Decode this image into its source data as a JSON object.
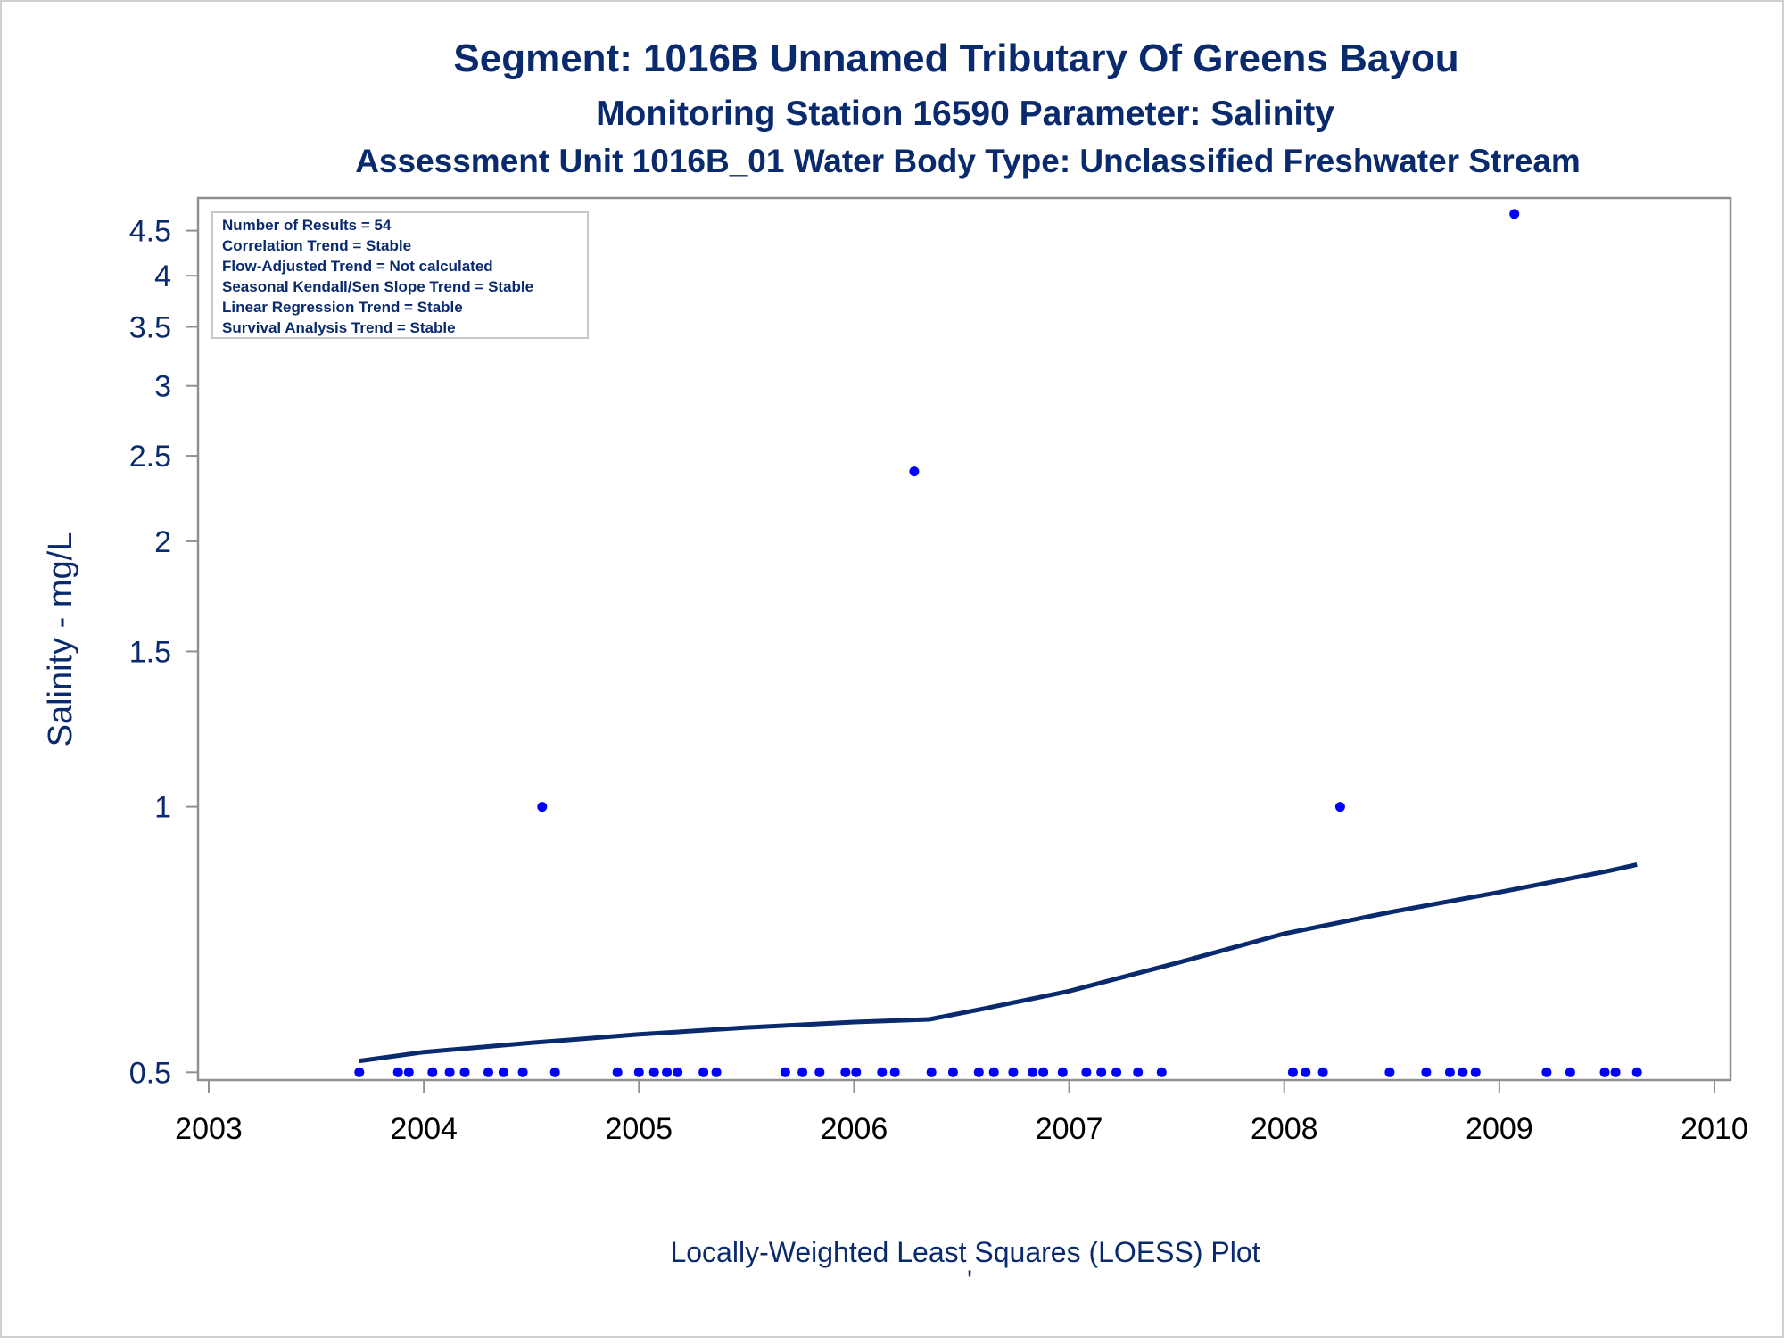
{
  "chart_data": {
    "type": "scatter",
    "title": "Segment: 1016B  Unnamed Tributary Of Greens Bayou",
    "subtitle": "Monitoring Station 16590 Parameter: Salinity",
    "subtitle2": "Assessment Unit 1016B_01   Water Body Type: Unclassified Freshwater Stream",
    "ylabel": "Salinity - mg/L",
    "footnote": "Locally-Weighted Least Squares (LOESS) Plot",
    "footnote_mark": "'",
    "yscale": "log",
    "ylim": [
      0.49,
      4.9
    ],
    "xlim": [
      2003,
      2010
    ],
    "x_ticks": [
      "2003",
      "2004",
      "2005",
      "2006",
      "2007",
      "2008",
      "2009",
      "2010"
    ],
    "y_ticks": [
      "0.5",
      "1",
      "1.5",
      "2",
      "2.5",
      "3",
      "3.5",
      "4",
      "4.5"
    ],
    "legend_position": "top-left",
    "legend_lines": [
      "Number of Results = 54",
      "Correlation Trend = Stable",
      "Flow-Adjusted Trend = Not calculated",
      "Seasonal Kendall/Sen Slope Trend = Stable",
      "Linear Regression Trend = Stable",
      "Survival Analysis Trend = Stable"
    ],
    "colors": {
      "points": "#0000ff",
      "loess": "#0a2a6e",
      "text": "#0a2a6e",
      "axis": "#909090"
    },
    "series": [
      {
        "type": "scatter",
        "x": [
          2003.7,
          2003.88,
          2003.93,
          2004.04,
          2004.12,
          2004.19,
          2004.3,
          2004.37,
          2004.46,
          2004.55,
          2004.61,
          2004.9,
          2005.0,
          2005.07,
          2005.13,
          2005.18,
          2005.3,
          2005.36,
          2005.68,
          2005.76,
          2005.84,
          2005.96,
          2006.01,
          2006.13,
          2006.19,
          2006.28,
          2006.36,
          2006.46,
          2006.58,
          2006.65,
          2006.74,
          2006.83,
          2006.88,
          2006.97,
          2007.08,
          2007.15,
          2007.22,
          2007.32,
          2007.43,
          2008.04,
          2008.1,
          2008.18,
          2008.26,
          2008.49,
          2008.66,
          2008.77,
          2008.83,
          2008.89,
          2009.07,
          2009.22,
          2009.33,
          2009.49,
          2009.54,
          2009.64
        ],
        "y": [
          0.5,
          0.5,
          0.5,
          0.5,
          0.5,
          0.5,
          0.5,
          0.5,
          0.5,
          1.0,
          0.5,
          0.5,
          0.5,
          0.5,
          0.5,
          0.5,
          0.5,
          0.5,
          0.5,
          0.5,
          0.5,
          0.5,
          0.5,
          0.5,
          0.5,
          2.4,
          0.5,
          0.5,
          0.5,
          0.5,
          0.5,
          0.5,
          0.5,
          0.5,
          0.5,
          0.5,
          0.5,
          0.5,
          0.5,
          0.5,
          0.5,
          0.5,
          1.0,
          0.5,
          0.5,
          0.5,
          0.5,
          0.5,
          4.7,
          0.5,
          0.5,
          0.5,
          0.5,
          0.5
        ]
      },
      {
        "type": "line",
        "x": [
          2003.7,
          2004.0,
          2004.5,
          2005.0,
          2005.5,
          2006.0,
          2006.35,
          2006.6,
          2007.0,
          2007.5,
          2008.0,
          2008.5,
          2009.0,
          2009.5,
          2009.64
        ],
        "y": [
          0.515,
          0.527,
          0.54,
          0.552,
          0.562,
          0.57,
          0.574,
          0.59,
          0.618,
          0.665,
          0.718,
          0.76,
          0.8,
          0.845,
          0.86
        ]
      }
    ]
  }
}
